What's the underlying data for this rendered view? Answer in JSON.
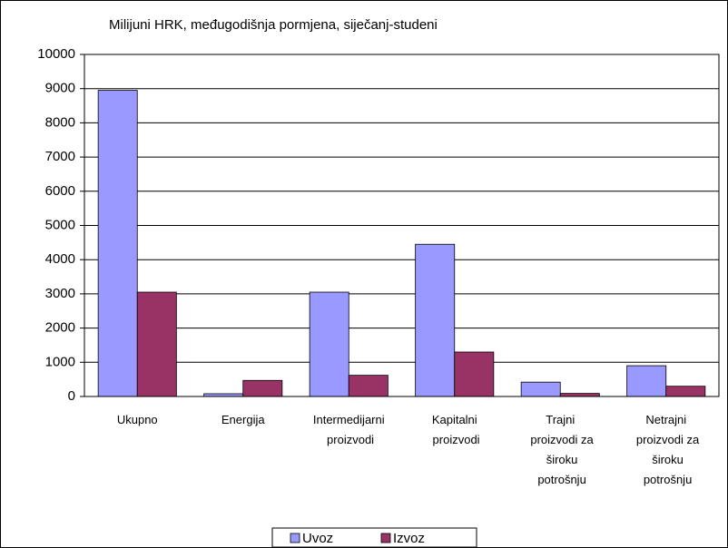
{
  "chart_data": {
    "type": "bar",
    "title": "Milijuni HRK, međugodišnja pormjena, siječanj-studeni",
    "categories": [
      "Ukupno",
      "Energija",
      "Intermedijarni proizvodi",
      "Kapitalni proizvodi",
      "Trajni proizvodi za široku potrošnju",
      "Netrajni proizvodi za široku potrošnju"
    ],
    "series": [
      {
        "name": "Uvoz",
        "color": "#9999ff",
        "values": [
          8950,
          80,
          3050,
          4450,
          420,
          900
        ]
      },
      {
        "name": "Izvoz",
        "color": "#993366",
        "values": [
          3050,
          470,
          620,
          1300,
          90,
          300
        ]
      }
    ],
    "ylim": [
      0,
      10000
    ],
    "yticks": [
      0,
      1000,
      2000,
      3000,
      4000,
      5000,
      6000,
      7000,
      8000,
      9000,
      10000
    ],
    "grid": true,
    "legend": "bottom"
  }
}
